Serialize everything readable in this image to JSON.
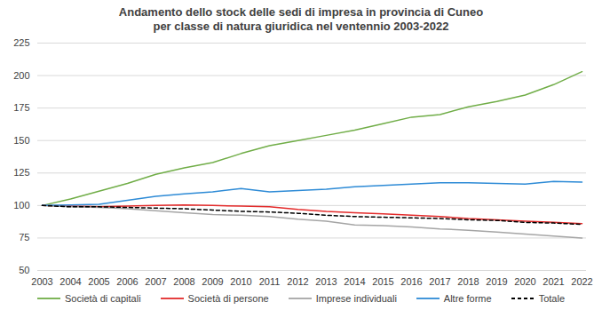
{
  "chart_data": {
    "type": "line",
    "title": [
      "Andamento dello stock delle sedi di impresa in provincia di Cuneo",
      "per classe di natura giuridica nel ventennio 2003-2022"
    ],
    "categories": [
      "2003",
      "2004",
      "2005",
      "2006",
      "2007",
      "2008",
      "2009",
      "2010",
      "2011",
      "2012",
      "2013",
      "2014",
      "2015",
      "2016",
      "2017",
      "2018",
      "2019",
      "2020",
      "2021",
      "2022"
    ],
    "series": [
      {
        "name": "Società di capitali",
        "color": "#70ad47",
        "line_style": "solid",
        "values": [
          100,
          105,
          111,
          117,
          124,
          129,
          133,
          140,
          146,
          150,
          154,
          158,
          163,
          168,
          170,
          176,
          180,
          185,
          193,
          203
        ]
      },
      {
        "name": "Società di persone",
        "color": "#e32b2b",
        "line_style": "solid",
        "values": [
          100,
          99.5,
          99,
          99.5,
          100,
          100.5,
          100,
          99.5,
          99,
          97,
          95.5,
          94.5,
          93.5,
          92.5,
          91.5,
          90,
          89,
          88,
          87,
          86
        ]
      },
      {
        "name": "Imprese individuali",
        "color": "#a5a5a5",
        "line_style": "solid",
        "values": [
          100,
          99,
          98.5,
          97.5,
          96,
          94.5,
          93,
          92.5,
          91.5,
          89.5,
          88,
          85,
          84.5,
          83.5,
          82,
          81,
          79.5,
          78,
          76.5,
          75
        ]
      },
      {
        "name": "Altre forme",
        "color": "#2e8bd6",
        "line_style": "solid",
        "values": [
          100,
          100.5,
          101,
          104,
          107,
          109,
          110.5,
          113,
          110.5,
          111.5,
          112.5,
          114.5,
          115.5,
          116.5,
          117.5,
          117.5,
          117,
          116.5,
          118.5,
          118
        ]
      },
      {
        "name": "Totale",
        "color": "#000000",
        "line_style": "dashed",
        "values": [
          100,
          99,
          99,
          98.5,
          98,
          97.5,
          96.5,
          95.5,
          95,
          94,
          92.5,
          91.5,
          91,
          90.5,
          90,
          89,
          88.5,
          87,
          86.5,
          85.5
        ]
      }
    ],
    "ylim": [
      50,
      225
    ],
    "yticks": [
      50,
      75,
      100,
      125,
      150,
      175,
      200,
      225
    ],
    "grid": true,
    "legend": "bottom"
  }
}
